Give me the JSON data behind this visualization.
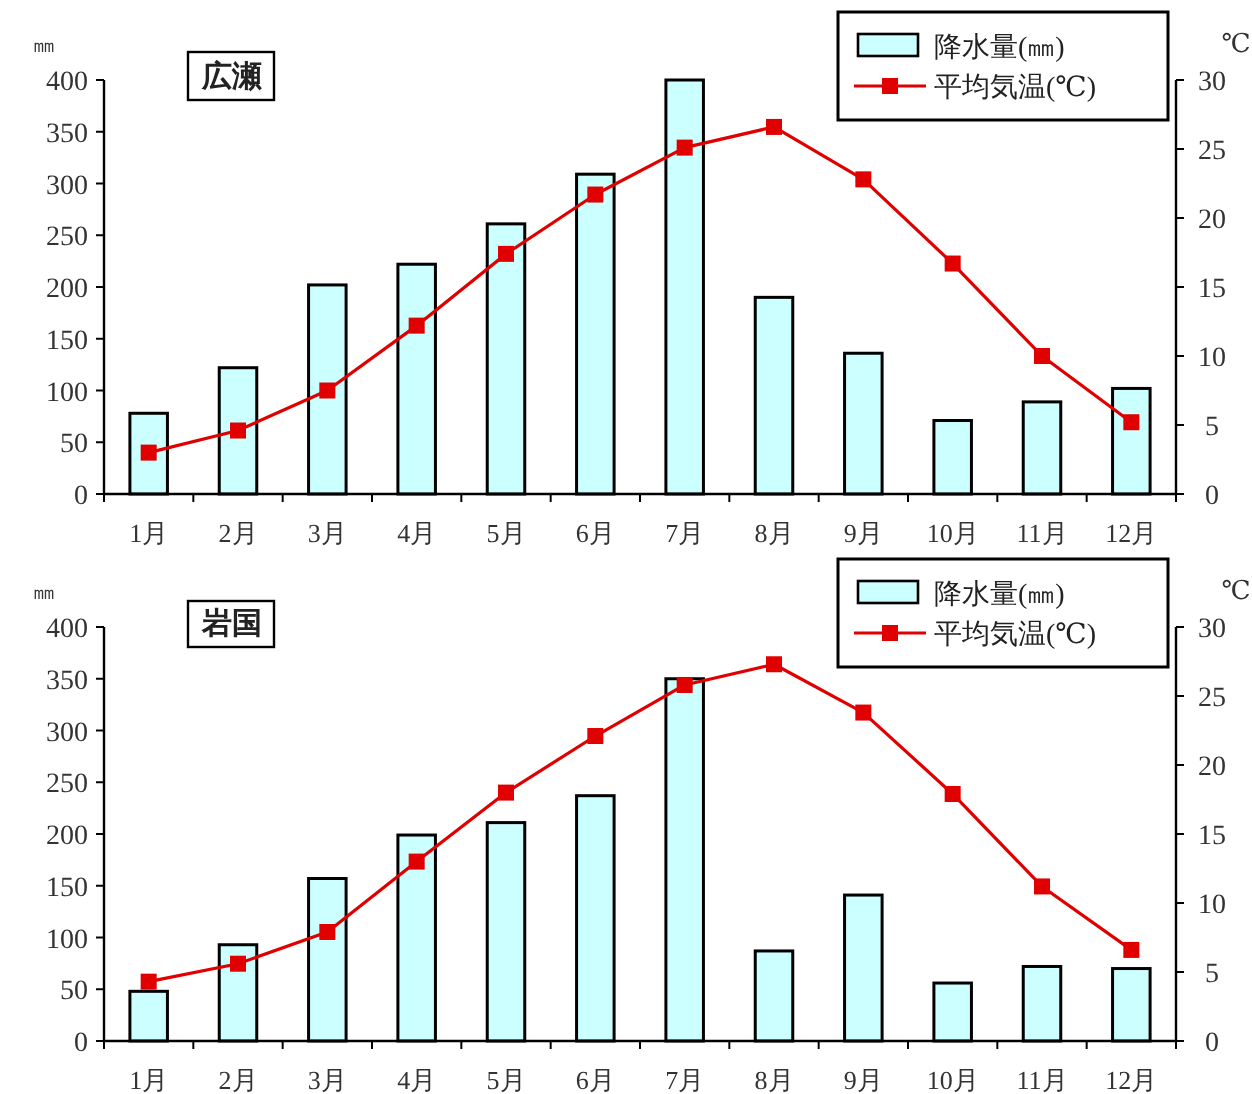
{
  "chart_data": [
    {
      "type": "bar",
      "title": "広瀬",
      "ylabel": "㎜",
      "y2label": "℃",
      "legend": "top right",
      "categories": [
        "1月",
        "2月",
        "3月",
        "4月",
        "5月",
        "6月",
        "7月",
        "8月",
        "9月",
        "10月",
        "11月",
        "12月"
      ],
      "series": [
        {
          "name": "降水量(㎜)",
          "color": "#ccffff",
          "values": [
            78,
            122,
            202,
            222,
            261,
            309,
            400,
            190,
            136,
            71,
            89,
            102
          ]
        },
        {
          "name": "平均気温(℃)",
          "type": "line",
          "axis": "y2",
          "marker": "square",
          "line_style": "solid",
          "color": "#e00000",
          "values": [
            3.0,
            4.6,
            7.5,
            12.2,
            17.4,
            21.7,
            25.1,
            26.6,
            22.8,
            16.7,
            10.0,
            5.2
          ]
        }
      ],
      "ylim": [
        0,
        400
      ],
      "yticks": [
        0,
        50,
        100,
        150,
        200,
        250,
        300,
        350,
        400
      ],
      "y2lim": [
        0,
        30
      ],
      "y2ticks": [
        0,
        5,
        10,
        15,
        20,
        25,
        30
      ]
    },
    {
      "type": "bar",
      "title": "岩国",
      "ylabel": "㎜",
      "y2label": "℃",
      "legend": "top right",
      "categories": [
        "1月",
        "2月",
        "3月",
        "4月",
        "5月",
        "6月",
        "7月",
        "8月",
        "9月",
        "10月",
        "11月",
        "12月"
      ],
      "series": [
        {
          "name": "降水量(㎜)",
          "color": "#ccffff",
          "values": [
            48,
            93,
            157,
            199,
            211,
            237,
            350,
            87,
            141,
            56,
            72,
            70
          ]
        },
        {
          "name": "平均気温(℃)",
          "type": "line",
          "axis": "y2",
          "marker": "square",
          "line_style": "solid",
          "color": "#e00000",
          "values": [
            4.3,
            5.6,
            7.9,
            13.0,
            18.0,
            22.1,
            25.8,
            27.3,
            23.8,
            17.9,
            11.2,
            6.6
          ]
        }
      ],
      "ylim": [
        0,
        400
      ],
      "yticks": [
        0,
        50,
        100,
        150,
        200,
        250,
        300,
        350,
        400
      ],
      "y2lim": [
        0,
        30
      ],
      "y2ticks": [
        0,
        5,
        10,
        15,
        20,
        25,
        30
      ]
    }
  ]
}
